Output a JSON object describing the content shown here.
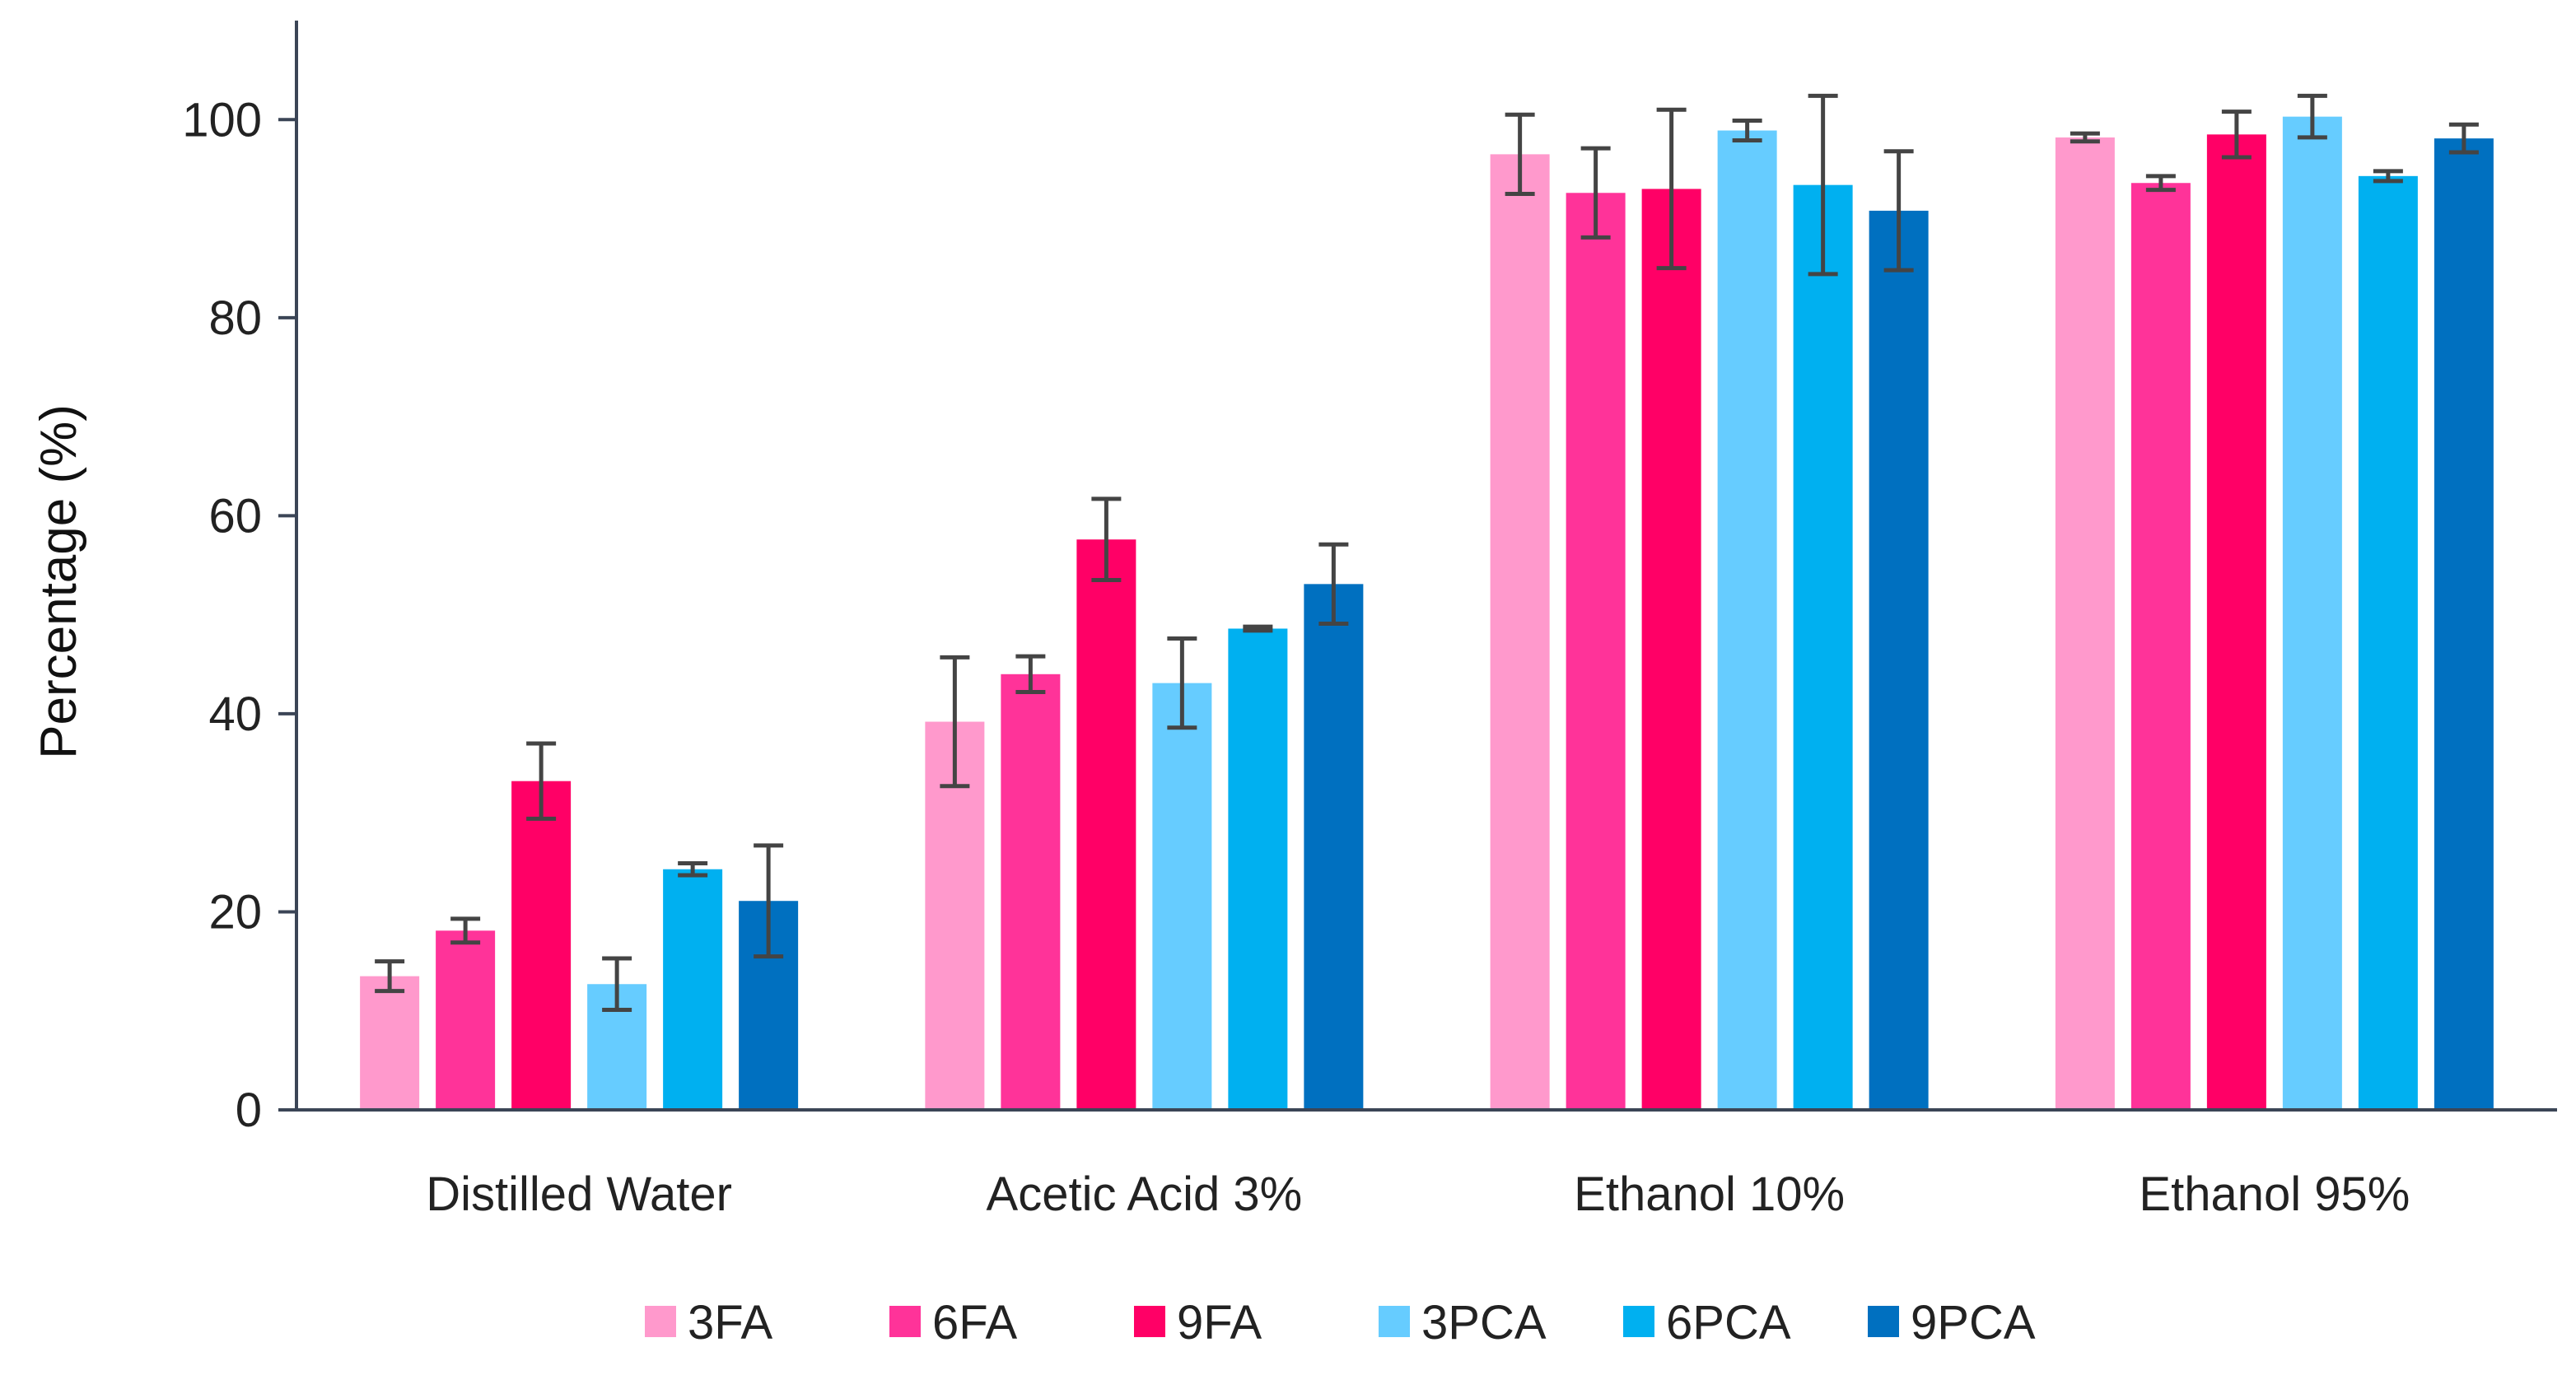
{
  "chart_data": {
    "type": "bar",
    "title": "",
    "xlabel": "",
    "ylabel": "Percentage (%)",
    "ylim": [
      0,
      110
    ],
    "yticks": [
      0,
      20,
      40,
      60,
      80,
      100
    ],
    "grid": false,
    "legend_position": "bottom",
    "categories": [
      "Distilled Water",
      "Acetic Acid 3%",
      "Ethanol 10%",
      "Ethanol 95%"
    ],
    "series": [
      {
        "name": "3FA",
        "color": "#FF99CC",
        "values": [
          13.5,
          39.2,
          96.5,
          98.2
        ],
        "errors": [
          1.5,
          6.5,
          4.0,
          0.4
        ]
      },
      {
        "name": "6FA",
        "color": "#FF3399",
        "values": [
          18.1,
          44.0,
          92.6,
          93.6
        ],
        "errors": [
          1.2,
          1.8,
          4.5,
          0.7
        ]
      },
      {
        "name": "9FA",
        "color": "#FF0066",
        "values": [
          33.2,
          57.6,
          93.0,
          98.5
        ],
        "errors": [
          3.8,
          4.1,
          8.0,
          2.3
        ]
      },
      {
        "name": "3PCA",
        "color": "#66CCFF",
        "values": [
          12.7,
          43.1,
          98.9,
          100.3
        ],
        "errors": [
          2.6,
          4.5,
          1.0,
          2.1
        ]
      },
      {
        "name": "6PCA",
        "color": "#00B0F0",
        "values": [
          24.3,
          48.6,
          93.4,
          94.3
        ],
        "errors": [
          0.6,
          0.2,
          9.0,
          0.5
        ]
      },
      {
        "name": "9PCA",
        "color": "#0070C0",
        "values": [
          21.1,
          53.1,
          90.8,
          98.1
        ],
        "errors": [
          5.6,
          4.0,
          6.0,
          1.4
        ]
      }
    ]
  }
}
